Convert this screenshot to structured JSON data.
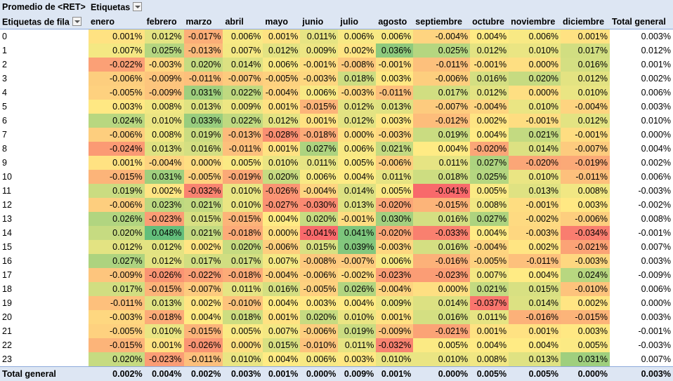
{
  "pivot": {
    "title": "Promedio de <RET>",
    "columns_label": "Etiquetas",
    "rows_label": "Etiquetas de fila",
    "months": [
      "enero",
      "febrero",
      "marzo",
      "abril",
      "mayo",
      "junio",
      "julio",
      "agosto",
      "septiembre",
      "octubre",
      "noviembre",
      "diciembre"
    ],
    "total_label": "Total general",
    "rows": [
      {
        "label": "0",
        "values": [
          "0.001%",
          "0.012%",
          "-0.017%",
          "0.006%",
          "0.001%",
          "0.011%",
          "0.006%",
          "0.006%",
          "-0.004%",
          "0.004%",
          "0.006%",
          "0.001%"
        ],
        "total": "0.003%"
      },
      {
        "label": "1",
        "values": [
          "0.007%",
          "0.025%",
          "-0.013%",
          "0.007%",
          "0.012%",
          "0.009%",
          "0.002%",
          "0.036%",
          "0.025%",
          "0.012%",
          "0.010%",
          "0.017%"
        ],
        "total": "0.012%"
      },
      {
        "label": "2",
        "values": [
          "-0.022%",
          "-0.003%",
          "0.020%",
          "0.014%",
          "0.006%",
          "-0.001%",
          "-0.008%",
          "-0.001%",
          "-0.011%",
          "-0.001%",
          "0.000%",
          "0.016%"
        ],
        "total": "0.001%"
      },
      {
        "label": "3",
        "values": [
          "-0.006%",
          "-0.009%",
          "-0.011%",
          "-0.007%",
          "-0.005%",
          "-0.003%",
          "0.018%",
          "0.003%",
          "-0.006%",
          "0.016%",
          "0.020%",
          "0.012%"
        ],
        "total": "0.002%"
      },
      {
        "label": "4",
        "values": [
          "-0.005%",
          "-0.009%",
          "0.031%",
          "0.022%",
          "-0.004%",
          "0.006%",
          "-0.003%",
          "-0.011%",
          "0.017%",
          "0.012%",
          "0.000%",
          "0.010%"
        ],
        "total": "0.006%"
      },
      {
        "label": "5",
        "values": [
          "0.003%",
          "0.008%",
          "0.013%",
          "0.009%",
          "0.001%",
          "-0.015%",
          "0.012%",
          "0.013%",
          "-0.007%",
          "-0.004%",
          "0.010%",
          "-0.004%"
        ],
        "total": "0.003%"
      },
      {
        "label": "6",
        "values": [
          "0.024%",
          "0.010%",
          "0.033%",
          "0.022%",
          "0.012%",
          "0.001%",
          "0.012%",
          "0.003%",
          "-0.012%",
          "0.002%",
          "-0.001%",
          "0.012%"
        ],
        "total": "0.010%"
      },
      {
        "label": "7",
        "values": [
          "-0.006%",
          "0.008%",
          "0.019%",
          "-0.013%",
          "-0.028%",
          "-0.018%",
          "0.000%",
          "-0.003%",
          "0.019%",
          "0.004%",
          "0.021%",
          "-0.001%"
        ],
        "total": "0.000%"
      },
      {
        "label": "8",
        "values": [
          "-0.024%",
          "0.013%",
          "0.016%",
          "-0.011%",
          "0.001%",
          "0.027%",
          "0.006%",
          "0.021%",
          "0.004%",
          "-0.020%",
          "0.014%",
          "-0.007%"
        ],
        "total": "0.004%"
      },
      {
        "label": "9",
        "values": [
          "0.001%",
          "-0.004%",
          "0.000%",
          "0.005%",
          "0.010%",
          "0.011%",
          "0.005%",
          "-0.006%",
          "0.011%",
          "0.027%",
          "-0.020%",
          "-0.019%"
        ],
        "total": "0.002%"
      },
      {
        "label": "10",
        "values": [
          "-0.015%",
          "0.031%",
          "-0.005%",
          "-0.019%",
          "0.020%",
          "0.006%",
          "0.004%",
          "0.011%",
          "0.018%",
          "0.025%",
          "0.010%",
          "-0.011%"
        ],
        "total": "0.006%"
      },
      {
        "label": "11",
        "values": [
          "0.019%",
          "0.002%",
          "-0.032%",
          "0.010%",
          "-0.026%",
          "-0.004%",
          "0.014%",
          "0.005%",
          "-0.041%",
          "0.005%",
          "0.013%",
          "0.008%"
        ],
        "total": "-0.003%"
      },
      {
        "label": "12",
        "values": [
          "-0.006%",
          "0.023%",
          "0.021%",
          "0.010%",
          "-0.027%",
          "-0.030%",
          "0.013%",
          "-0.020%",
          "-0.015%",
          "0.008%",
          "-0.001%",
          "0.003%"
        ],
        "total": "-0.002%"
      },
      {
        "label": "13",
        "values": [
          "0.026%",
          "-0.023%",
          "0.015%",
          "-0.015%",
          "0.004%",
          "0.020%",
          "-0.001%",
          "0.030%",
          "0.016%",
          "0.027%",
          "-0.002%",
          "-0.006%"
        ],
        "total": "0.008%"
      },
      {
        "label": "14",
        "values": [
          "0.020%",
          "0.048%",
          "0.021%",
          "-0.018%",
          "0.000%",
          "-0.041%",
          "0.041%",
          "-0.020%",
          "-0.033%",
          "0.004%",
          "-0.003%",
          "-0.034%"
        ],
        "total": "-0.001%"
      },
      {
        "label": "15",
        "values": [
          "0.012%",
          "0.012%",
          "0.002%",
          "0.020%",
          "-0.006%",
          "0.015%",
          "0.039%",
          "-0.003%",
          "0.016%",
          "-0.004%",
          "0.002%",
          "-0.021%"
        ],
        "total": "0.007%"
      },
      {
        "label": "16",
        "values": [
          "0.027%",
          "0.012%",
          "0.017%",
          "0.017%",
          "0.007%",
          "-0.008%",
          "-0.007%",
          "0.006%",
          "-0.016%",
          "-0.005%",
          "-0.011%",
          "-0.003%"
        ],
        "total": "0.003%"
      },
      {
        "label": "17",
        "values": [
          "-0.009%",
          "-0.026%",
          "-0.022%",
          "-0.018%",
          "-0.004%",
          "-0.006%",
          "-0.002%",
          "-0.023%",
          "-0.023%",
          "0.007%",
          "0.004%",
          "0.024%"
        ],
        "total": "-0.009%"
      },
      {
        "label": "18",
        "values": [
          "0.017%",
          "-0.015%",
          "-0.007%",
          "0.011%",
          "0.016%",
          "-0.005%",
          "0.026%",
          "-0.004%",
          "0.000%",
          "0.021%",
          "0.015%",
          "-0.010%"
        ],
        "total": "0.006%"
      },
      {
        "label": "19",
        "values": [
          "-0.011%",
          "0.013%",
          "0.002%",
          "-0.010%",
          "0.004%",
          "0.003%",
          "0.004%",
          "0.009%",
          "0.014%",
          "-0.037%",
          "0.014%",
          "0.002%"
        ],
        "total": "0.000%"
      },
      {
        "label": "20",
        "values": [
          "-0.003%",
          "-0.018%",
          "0.004%",
          "0.018%",
          "0.001%",
          "0.020%",
          "0.010%",
          "0.001%",
          "0.016%",
          "0.011%",
          "-0.016%",
          "-0.015%"
        ],
        "total": "0.003%"
      },
      {
        "label": "21",
        "values": [
          "-0.005%",
          "0.010%",
          "-0.015%",
          "0.005%",
          "0.007%",
          "-0.006%",
          "0.019%",
          "-0.009%",
          "-0.021%",
          "0.001%",
          "0.001%",
          "0.003%"
        ],
        "total": "-0.001%"
      },
      {
        "label": "22",
        "values": [
          "-0.015%",
          "0.001%",
          "-0.026%",
          "0.000%",
          "0.015%",
          "-0.010%",
          "0.011%",
          "-0.032%",
          "0.005%",
          "0.004%",
          "0.004%",
          "0.005%"
        ],
        "total": "-0.003%"
      },
      {
        "label": "23",
        "values": [
          "0.020%",
          "-0.023%",
          "-0.011%",
          "0.010%",
          "0.004%",
          "0.006%",
          "0.003%",
          "0.010%",
          "0.010%",
          "0.008%",
          "0.013%",
          "0.031%"
        ],
        "total": "0.007%"
      }
    ],
    "grand_total": {
      "values": [
        "0.002%",
        "0.004%",
        "0.002%",
        "0.003%",
        "0.001%",
        "0.000%",
        "0.009%",
        "0.001%",
        "0.000%",
        "0.005%",
        "0.005%",
        "0.000%"
      ],
      "total": "0.003%"
    },
    "colors": {
      "low": "#f8696b",
      "mid": "#ffeb84",
      "high": "#63be7b",
      "header_bg": "#dde6f3",
      "header_border": "#8eaadb"
    }
  }
}
